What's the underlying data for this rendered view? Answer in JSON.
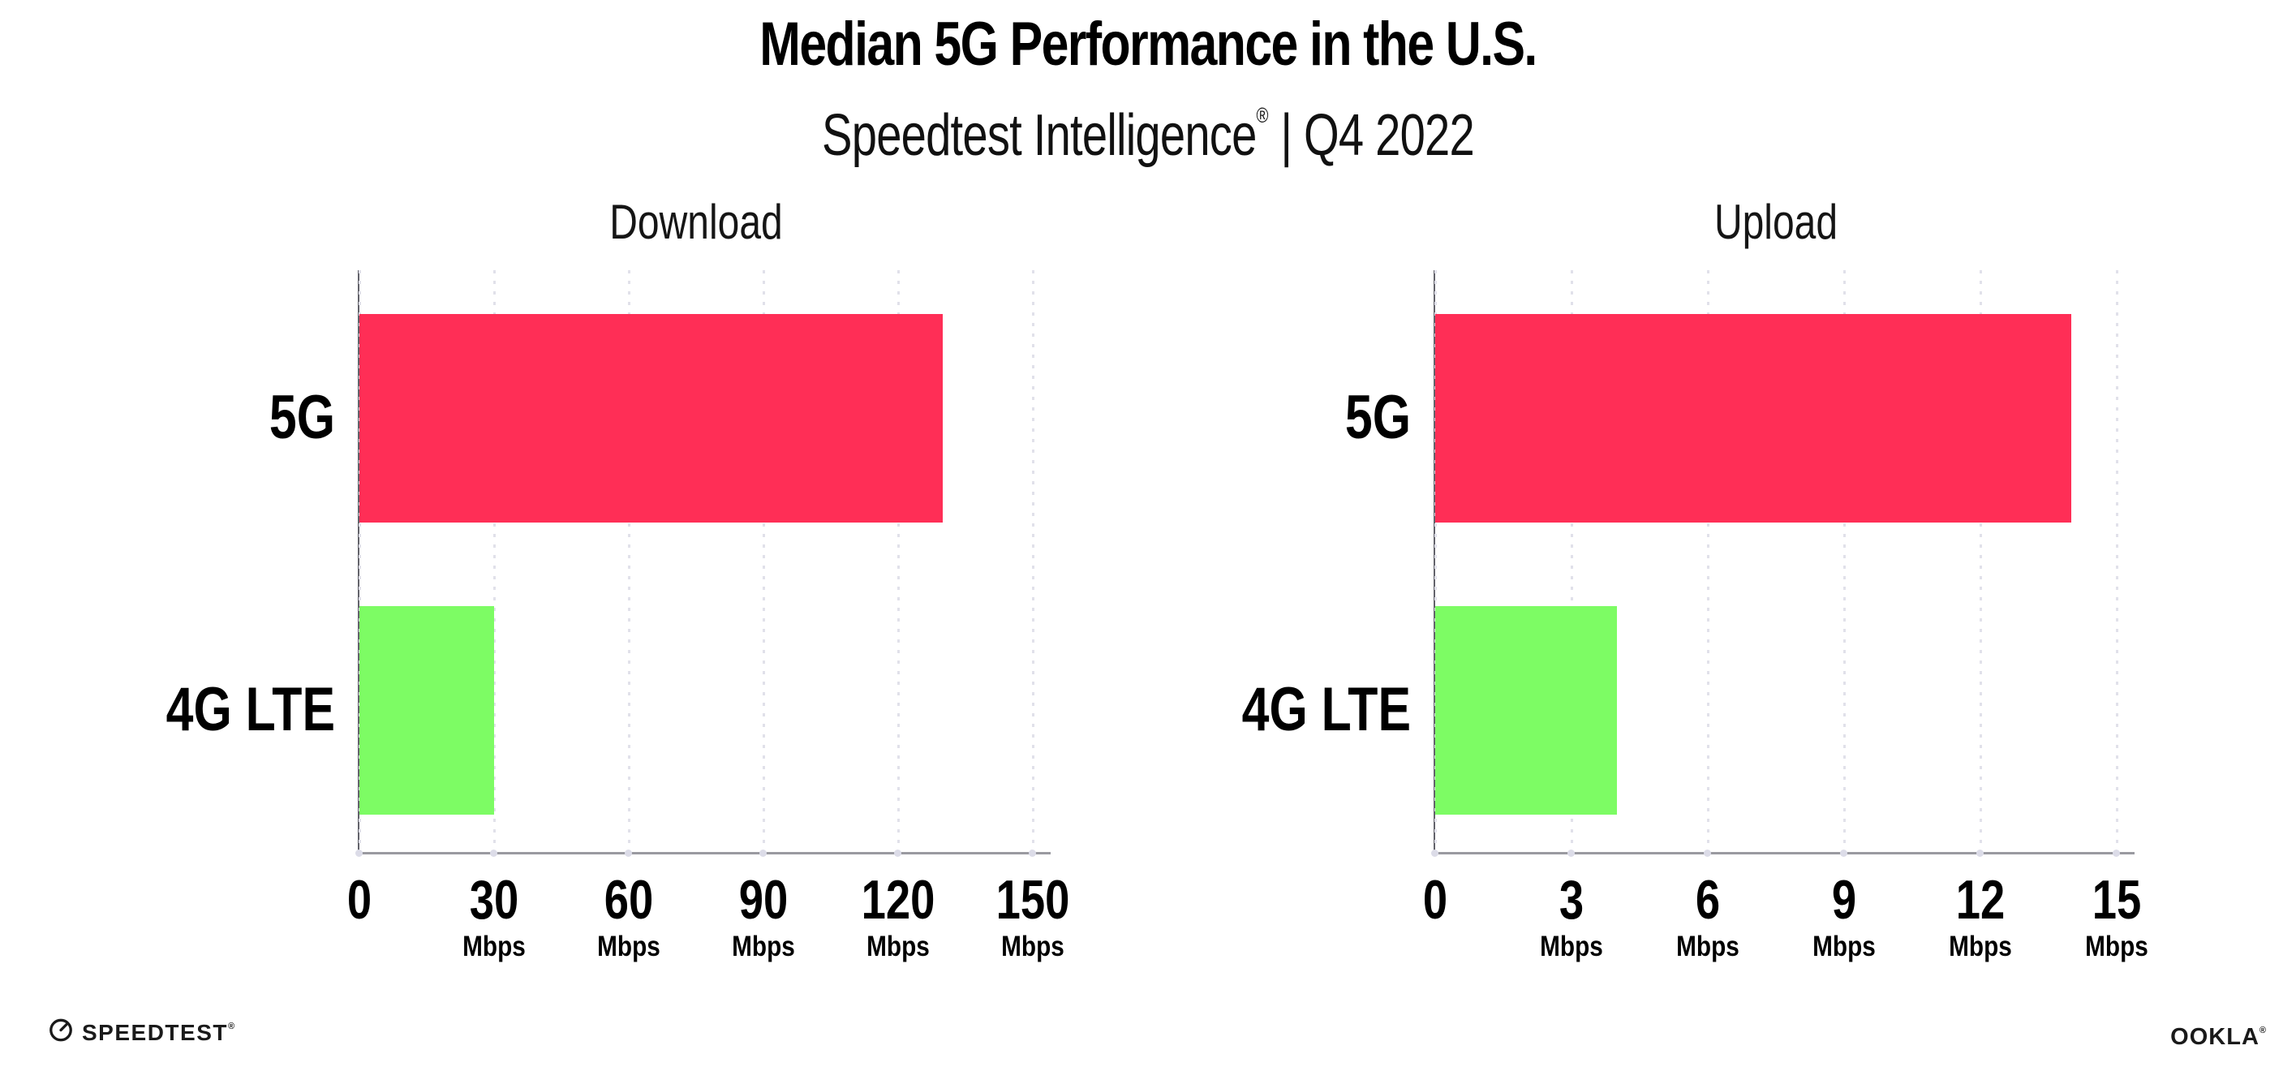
{
  "header": {
    "title": "Median 5G Performance in the U.S.",
    "subtitle_product": "Speedtest Intelligence",
    "subtitle_reg": "®",
    "subtitle_rest": " | Q4 2022"
  },
  "chart_data": [
    {
      "type": "bar",
      "orientation": "horizontal",
      "title": "Download",
      "categories": [
        "5G",
        "4G LTE"
      ],
      "values": [
        130,
        30
      ],
      "unit": "Mbps",
      "xlim": [
        0,
        150
      ],
      "ticks": [
        0,
        30,
        60,
        90,
        120,
        150
      ],
      "tick_labels": [
        "0",
        "30",
        "60",
        "90",
        "120",
        "150"
      ],
      "bar_colors": [
        "#FF2E56",
        "#7DFC64"
      ],
      "grid": "vertical-dotted",
      "legend": "none"
    },
    {
      "type": "bar",
      "orientation": "horizontal",
      "title": "Upload",
      "categories": [
        "5G",
        "4G LTE"
      ],
      "values": [
        14,
        4
      ],
      "unit": "Mbps",
      "xlim": [
        0,
        15
      ],
      "ticks": [
        0,
        3,
        6,
        9,
        12,
        15
      ],
      "tick_labels": [
        "0",
        "3",
        "6",
        "9",
        "12",
        "15"
      ],
      "bar_colors": [
        "#FF2E56",
        "#7DFC64"
      ],
      "grid": "vertical-dotted",
      "legend": "none"
    }
  ],
  "footer": {
    "speedtest_label": "SPEEDTEST",
    "speedtest_mark": "®",
    "ookla_label": "OOKLA",
    "ookla_mark": "®"
  },
  "colors": {
    "bar_5g": "#FF2E56",
    "bar_4g_lte": "#7DFC64",
    "axis": "#9A9AA0",
    "gridline": "#E1E1EA",
    "text": "#000000"
  }
}
